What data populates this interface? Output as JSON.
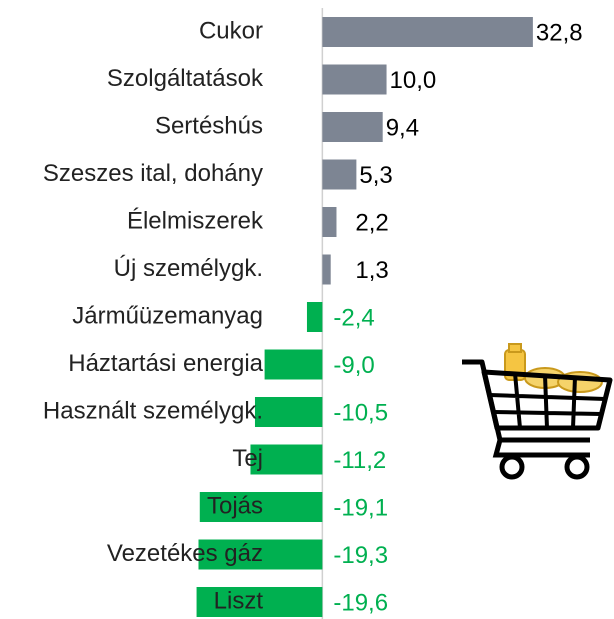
{
  "chart_data": {
    "type": "hbar",
    "categories": [
      "Cukor",
      "Szolgáltatások",
      "Sertéshús",
      "Szeszes ital, dohány",
      "Élelmiszerek",
      "Új személygk.",
      "Járműüzemanyag",
      "Háztartási energia",
      "Használt személygk.",
      "Tej",
      "Tojás",
      "Vezetékes gáz",
      "Liszt"
    ],
    "values": [
      32.8,
      10.0,
      9.4,
      5.3,
      2.2,
      1.3,
      -2.4,
      -9.0,
      -10.5,
      -11.2,
      -19.1,
      -19.3,
      -19.6
    ],
    "value_labels": [
      "32,8",
      "10,0",
      "9,4",
      "5,3",
      "2,2",
      "1,3",
      "-2,4",
      "-9,0",
      "-10,5",
      "-11,2",
      "-19,1",
      "-19,3",
      "-19,6"
    ],
    "positive_color": "#7d8593",
    "negative_color": "#00b050",
    "xlim": [
      -20,
      35
    ]
  }
}
